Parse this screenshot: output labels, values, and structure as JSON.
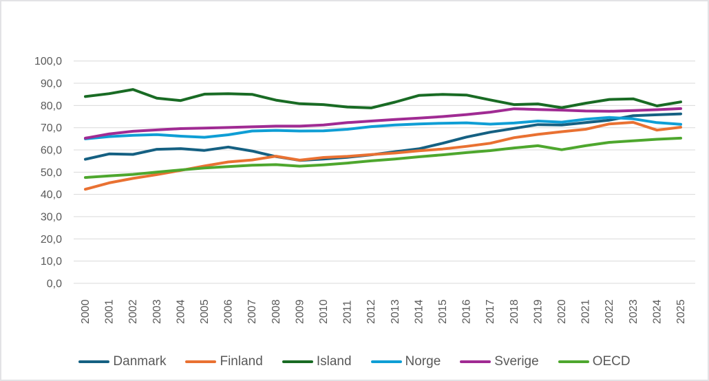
{
  "chart_data": {
    "type": "line",
    "title": "",
    "xlabel": "",
    "ylabel": "",
    "ylim": [
      0,
      100
    ],
    "y_tick_step": 10,
    "grid": "horizontal",
    "legend_position": "bottom",
    "decimal_separator": ",",
    "y_tick_labels": [
      "0,0",
      "10,0",
      "20,0",
      "30,0",
      "40,0",
      "50,0",
      "60,0",
      "70,0",
      "80,0",
      "90,0",
      "100,0"
    ],
    "categories": [
      "2000",
      "2001",
      "2002",
      "2003",
      "2004",
      "2005",
      "2006",
      "2007",
      "2008",
      "2009",
      "2010",
      "2011",
      "2012",
      "2013",
      "2014",
      "2015",
      "2016",
      "2017",
      "2018",
      "2019",
      "2020",
      "2021",
      "2022",
      "2023",
      "2024",
      "2025"
    ],
    "series": [
      {
        "name": "Danmark",
        "color": "#156082",
        "values": [
          55.8,
          58.2,
          58.0,
          60.3,
          60.6,
          59.8,
          61.3,
          59.5,
          57.0,
          55.3,
          55.9,
          56.7,
          57.8,
          59.2,
          60.5,
          63.0,
          65.8,
          68.0,
          69.7,
          71.4,
          71.2,
          72.3,
          73.4,
          75.4,
          75.8,
          76.2
        ]
      },
      {
        "name": "Finland",
        "color": "#E97132",
        "values": [
          42.3,
          45.2,
          47.2,
          48.9,
          50.8,
          52.8,
          54.6,
          55.5,
          57.2,
          55.4,
          56.6,
          57.1,
          57.9,
          58.6,
          59.6,
          60.4,
          61.6,
          63.0,
          65.5,
          67.0,
          68.2,
          69.3,
          71.7,
          72.4,
          68.9,
          70.2
        ]
      },
      {
        "name": "Island",
        "color": "#196B24",
        "values": [
          84.0,
          85.3,
          87.2,
          83.3,
          82.2,
          85.1,
          85.3,
          85.0,
          82.4,
          80.8,
          80.4,
          79.3,
          78.9,
          81.5,
          84.5,
          85.0,
          84.7,
          82.5,
          80.4,
          80.7,
          79.0,
          81.0,
          82.7,
          83.0,
          79.8,
          81.6
        ]
      },
      {
        "name": "Norge",
        "color": "#0F9ED5",
        "values": [
          65.0,
          66.0,
          66.6,
          66.9,
          66.2,
          65.7,
          66.8,
          68.5,
          68.8,
          68.5,
          68.6,
          69.3,
          70.5,
          71.2,
          71.7,
          72.0,
          72.2,
          71.6,
          72.1,
          73.0,
          72.5,
          73.8,
          74.6,
          74.0,
          72.3,
          71.5
        ]
      },
      {
        "name": "Sverige",
        "color": "#A02B93",
        "values": [
          65.3,
          67.2,
          68.4,
          69.0,
          69.6,
          69.8,
          70.1,
          70.4,
          70.7,
          70.7,
          71.2,
          72.3,
          73.0,
          73.7,
          74.3,
          75.0,
          75.9,
          77.0,
          78.5,
          78.2,
          77.9,
          77.5,
          77.4,
          77.7,
          78.1,
          78.6
        ]
      },
      {
        "name": "OECD",
        "color": "#4EA72E",
        "values": [
          47.6,
          48.3,
          49.0,
          50.0,
          51.0,
          51.9,
          52.5,
          53.1,
          53.4,
          52.7,
          53.3,
          54.1,
          55.1,
          55.9,
          56.9,
          57.8,
          58.8,
          59.7,
          60.9,
          61.9,
          60.1,
          61.9,
          63.4,
          64.1,
          64.8,
          65.3
        ]
      }
    ]
  }
}
